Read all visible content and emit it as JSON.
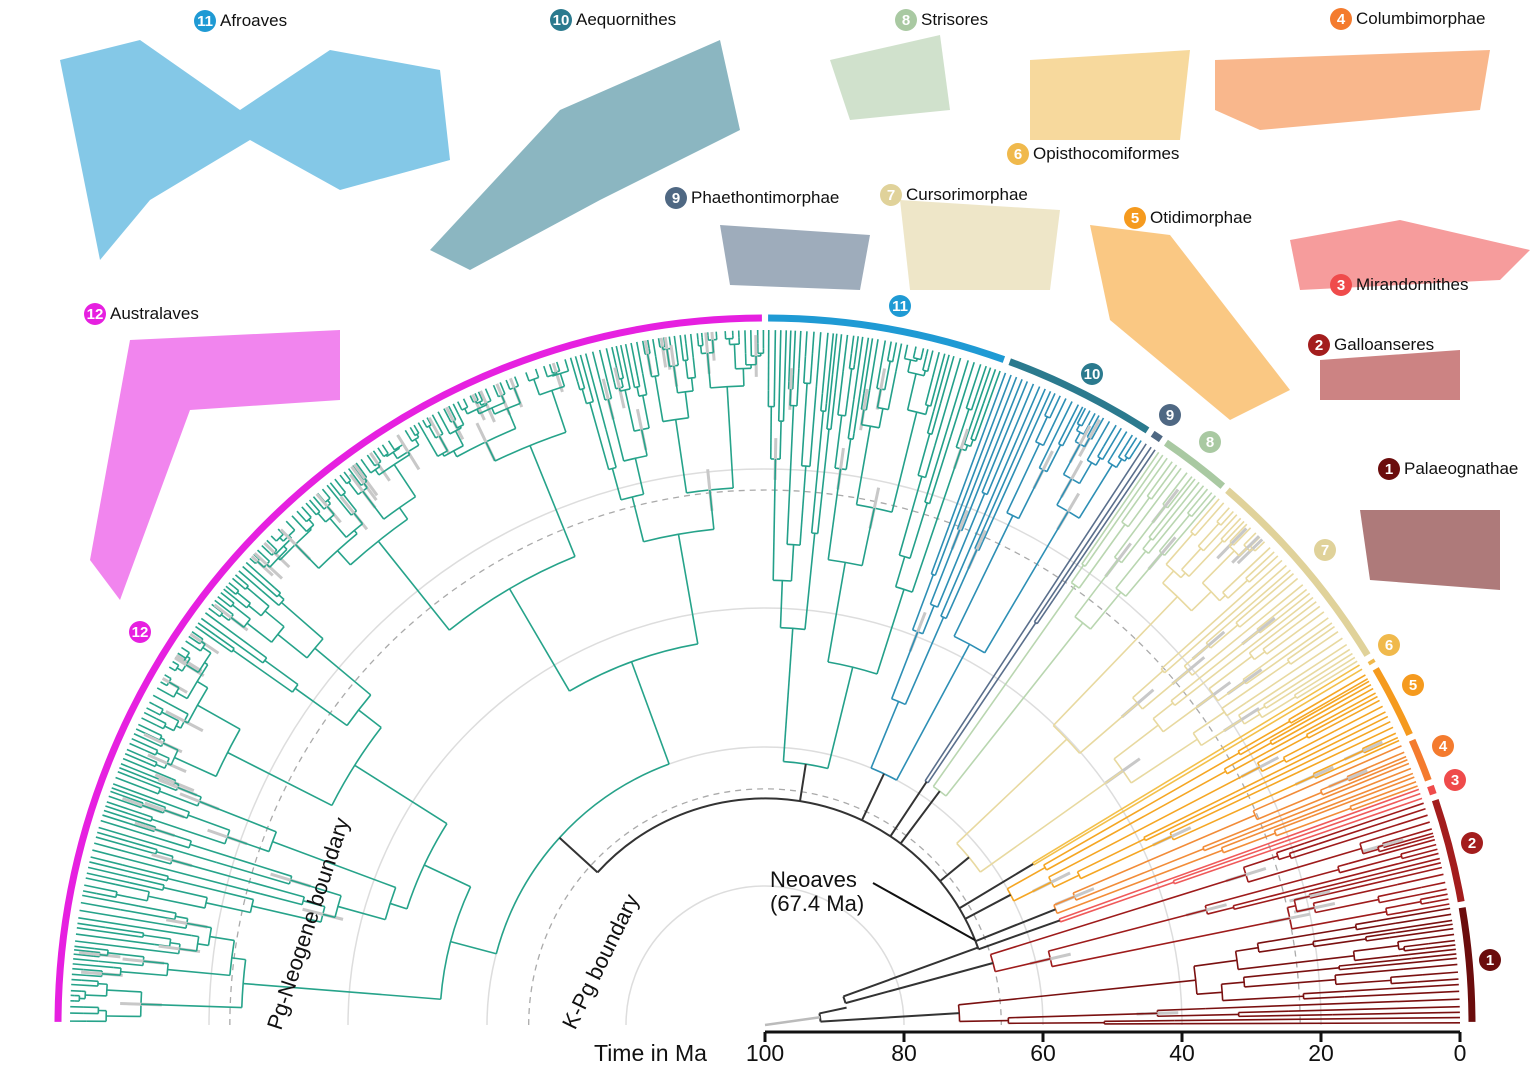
{
  "clades": [
    {
      "num": "1",
      "name": "Palaeognathae",
      "color": "#6b0d0d",
      "branch": "#7a1010"
    },
    {
      "num": "2",
      "name": "Galloanseres",
      "color": "#a31d1d",
      "branch": "#9e1b1b"
    },
    {
      "num": "3",
      "name": "Mirandornithes",
      "color": "#ef4b4b",
      "branch": "#ef5a5a"
    },
    {
      "num": "4",
      "name": "Columbimorphae",
      "color": "#f47b2e",
      "branch": "#f28c38"
    },
    {
      "num": "5",
      "name": "Otidimorphae",
      "color": "#f59a1e",
      "branch": "#f5a623"
    },
    {
      "num": "6",
      "name": "Opisthocomiformes",
      "color": "#f0b94c",
      "branch": "#f3c04a"
    },
    {
      "num": "7",
      "name": "Cursorimorphae",
      "color": "#e0d29a",
      "branch": "#e8d9a0"
    },
    {
      "num": "8",
      "name": "Strisores",
      "color": "#a9c9a2",
      "branch": "#b9d6b0"
    },
    {
      "num": "9",
      "name": "Phaethontimorphae",
      "color": "#4f6883",
      "branch": "#5a6f8c"
    },
    {
      "num": "10",
      "name": "Aequornithes",
      "color": "#2b7a8e",
      "branch": "#2d8fb5"
    },
    {
      "num": "11",
      "name": "Afroaves",
      "color": "#1f9ad4",
      "branch": "#23a08a"
    },
    {
      "num": "12",
      "name": "Australaves",
      "color": "#e620e0",
      "branch": "#26a38a"
    }
  ],
  "annotations": {
    "neoaves_name": "Neoaves",
    "neoaves_age": "(67.4 Ma)",
    "pg_neogene": "Pg-Neogene boundary",
    "kpg": "K-Pg boundary"
  },
  "axis": {
    "title": "Time in Ma",
    "ticks": [
      "100",
      "80",
      "60",
      "40",
      "20",
      "0"
    ]
  }
}
